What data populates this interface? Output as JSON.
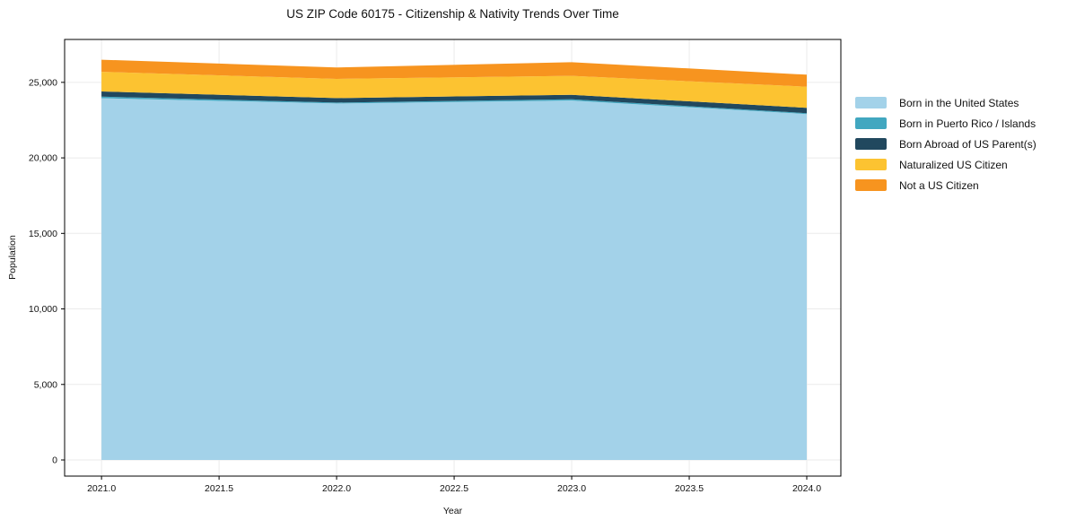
{
  "figure": {
    "title": "US ZIP Code 60175 - Citizenship & Nativity Trends Over Time"
  },
  "chart_data": {
    "type": "area",
    "stacked": true,
    "title": "US ZIP Code 60175 - Citizenship & Nativity Trends Over Time",
    "xlabel": "Year",
    "ylabel": "Population",
    "x": [
      2021,
      2022,
      2023,
      2024
    ],
    "series": [
      {
        "name": "Born in the United States",
        "color": "#a3d2e9",
        "values": [
          23950,
          23600,
          23800,
          22900
        ]
      },
      {
        "name": "Born in Puerto Rico / Islands",
        "color": "#41a7c0",
        "values": [
          100,
          60,
          80,
          60
        ]
      },
      {
        "name": "Born Abroad of US Parent(s)",
        "color": "#21485e",
        "values": [
          350,
          300,
          300,
          350
        ]
      },
      {
        "name": "Naturalized US Citizen",
        "color": "#fcc331",
        "values": [
          1300,
          1270,
          1250,
          1400
        ]
      },
      {
        "name": "Not a US Citizen",
        "color": "#f7941f",
        "values": [
          800,
          750,
          900,
          800
        ]
      }
    ],
    "totals": [
      26500,
      25980,
      26330,
      25510
    ],
    "xticks": [
      2021.0,
      2021.5,
      2022.0,
      2022.5,
      2023.0,
      2023.5,
      2024.0
    ],
    "xtick_labels": [
      "2021.0",
      "2021.5",
      "2022.0",
      "2022.5",
      "2023.0",
      "2023.5",
      "2024.0"
    ],
    "yticks": [
      0,
      5000,
      10000,
      15000,
      20000,
      25000
    ],
    "ytick_labels": [
      "0",
      "5,000",
      "10,000",
      "15,000",
      "20,000",
      "25,000"
    ],
    "xlim": [
      2020.843,
      2024.145
    ],
    "ylim": [
      -1068,
      27840
    ],
    "grid": true,
    "grid_color": "#ebebeb",
    "spine_color": "#000000",
    "legend_position": "right"
  }
}
